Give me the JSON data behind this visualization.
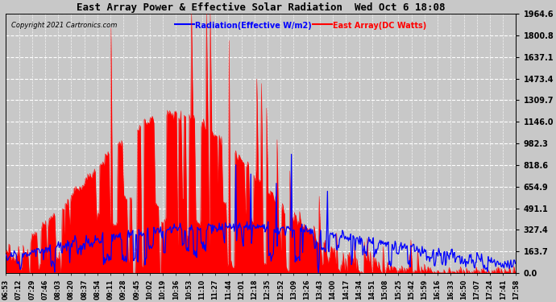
{
  "title": "East Array Power & Effective Solar Radiation  Wed Oct 6 18:08",
  "copyright": "Copyright 2021 Cartronics.com",
  "legend_radiation": "Radiation(Effective W/m2)",
  "legend_east": "East Array(DC Watts)",
  "radiation_color": "#0000ff",
  "east_color": "#ff0000",
  "background_color": "#c8c8c8",
  "plot_bg_color": "#c8c8c8",
  "grid_color": "#ffffff",
  "ytick_values": [
    0.0,
    163.7,
    327.4,
    491.1,
    654.9,
    818.6,
    982.3,
    1146.0,
    1309.7,
    1473.4,
    1637.1,
    1800.8,
    1964.6
  ],
  "ymax": 1964.6,
  "ymin": 0.0,
  "xtick_labels": [
    "06:53",
    "07:12",
    "07:29",
    "07:46",
    "08:03",
    "08:20",
    "08:37",
    "08:54",
    "09:11",
    "09:28",
    "09:45",
    "10:02",
    "10:19",
    "10:36",
    "10:53",
    "11:10",
    "11:27",
    "11:44",
    "12:01",
    "12:18",
    "12:35",
    "12:52",
    "13:09",
    "13:26",
    "13:43",
    "14:00",
    "14:17",
    "14:34",
    "14:51",
    "15:08",
    "15:25",
    "15:42",
    "15:59",
    "16:16",
    "16:33",
    "16:50",
    "17:07",
    "17:24",
    "17:41",
    "17:58"
  ]
}
